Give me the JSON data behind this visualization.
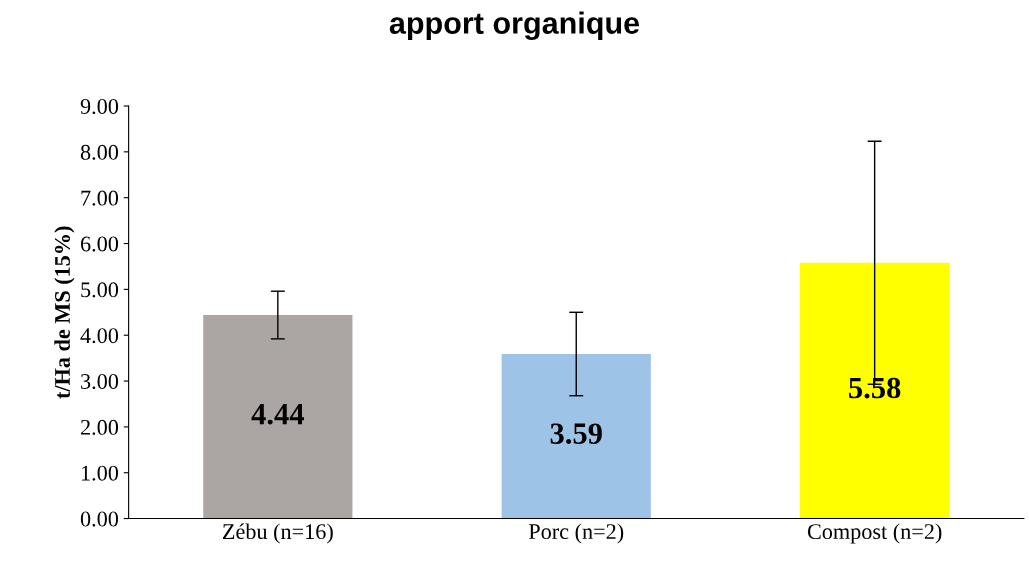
{
  "chart_data": {
    "type": "bar",
    "title": "apport organique",
    "ylabel": "t/Ha de MS (15%)",
    "categories": [
      "Zébu (n=16)",
      "Porc (n=2)",
      "Compost (n=2)"
    ],
    "values": [
      4.44,
      3.59,
      5.58
    ],
    "colors": [
      "#aba6a4",
      "#9dc3e6",
      "#ffff00"
    ],
    "errors": [
      0.52,
      0.91,
      2.65
    ],
    "data_labels": true,
    "ylim": [
      0,
      9
    ],
    "yticks": [
      {
        "value": 0,
        "label": "0.00"
      },
      {
        "value": 1,
        "label": "1.00"
      },
      {
        "value": 2,
        "label": "2.00"
      },
      {
        "value": 3,
        "label": "3.00"
      },
      {
        "value": 4,
        "label": "4.00"
      },
      {
        "value": 5,
        "label": "5.00"
      },
      {
        "value": 6,
        "label": "6.00"
      },
      {
        "value": 7,
        "label": "7.00"
      },
      {
        "value": 8,
        "label": "8.00"
      },
      {
        "value": 9,
        "label": "9.00"
      }
    ],
    "grid": false,
    "legend": false
  }
}
